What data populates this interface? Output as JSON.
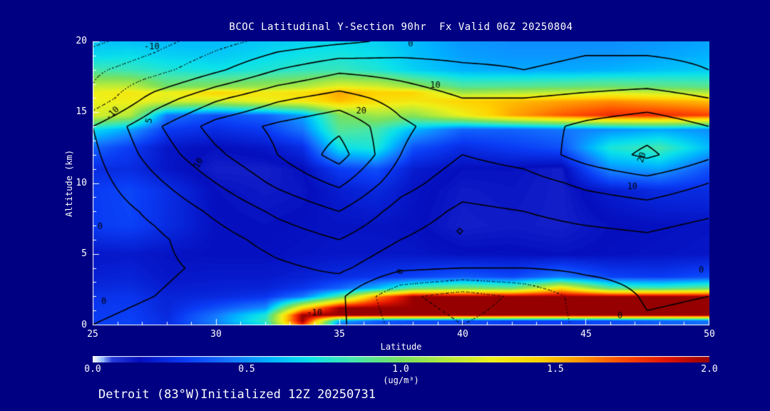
{
  "title": "BCOC Latitudinal Y-Section 90hr  Fx Valid 06Z 20250804",
  "footer": "Detroit (83°W)Initialized 12Z 20250731",
  "colors": {
    "background": "#000082",
    "text": "#ffffff",
    "axis": "#ffffff",
    "contour_line": "#000000"
  },
  "axes": {
    "x": {
      "label": "Latitude",
      "min": 25,
      "max": 50,
      "minor_step": 1,
      "ticks": [
        "25",
        "30",
        "35",
        "40",
        "45",
        "50"
      ]
    },
    "y": {
      "label": "Altitude (km)",
      "min": 0,
      "max": 20,
      "minor_step": 1,
      "ticks": [
        "0",
        "5",
        "10",
        "15",
        "20"
      ]
    }
  },
  "colorbar": {
    "min": 0,
    "max": 2,
    "ticks": [
      "0.0",
      "0.5",
      "1.0",
      "1.5",
      "2.0"
    ],
    "unit": "(ug/m³)"
  },
  "chart_data": {
    "type": "heatmap",
    "title": "BCOC Latitudinal Y-Section 90hr  Fx Valid 06Z 20250804",
    "xlabel": "Latitude",
    "ylabel": "Altitude (km)",
    "xlim": [
      25,
      50
    ],
    "ylim": [
      0,
      20
    ],
    "fill_field": {
      "name": "BCOC concentration",
      "units": "ug/m3",
      "range": [
        0,
        2
      ],
      "lats": [
        25,
        26.5,
        28,
        30,
        32,
        33.5,
        35,
        36.5,
        38,
        40,
        42,
        44,
        46,
        48,
        50
      ],
      "alts": [
        0,
        0.3,
        0.7,
        1.2,
        2,
        2.6,
        3.4,
        5,
        7,
        9.5,
        11,
        12.5,
        13.8,
        14.8,
        15.8,
        16.4,
        16.8,
        18,
        19,
        20
      ],
      "values": [
        [
          0.3,
          0.32,
          0.25,
          0.45,
          0.7,
          1.8,
          0.4,
          0.35,
          0.33,
          0.33,
          0.3,
          0.3,
          0.33,
          0.38,
          0.42
        ],
        [
          0.3,
          0.32,
          0.25,
          0.48,
          0.8,
          2.0,
          0.6,
          0.4,
          0.35,
          0.35,
          0.32,
          0.32,
          0.35,
          0.4,
          0.45
        ],
        [
          0.3,
          0.31,
          0.24,
          0.45,
          0.75,
          2.0,
          2.0,
          2.0,
          2.0,
          2.0,
          2.0,
          2.0,
          2.0,
          2.0,
          2.0
        ],
        [
          0.29,
          0.3,
          0.23,
          0.35,
          0.5,
          1.4,
          2.0,
          2.0,
          2.0,
          2.0,
          2.0,
          2.0,
          2.0,
          2.0,
          2.0
        ],
        [
          0.27,
          0.28,
          0.22,
          0.24,
          0.28,
          0.45,
          0.9,
          1.6,
          2.0,
          2.0,
          2.0,
          2.0,
          2.0,
          2.0,
          2.0
        ],
        [
          0.24,
          0.25,
          0.2,
          0.21,
          0.22,
          0.28,
          0.4,
          0.6,
          0.9,
          1.0,
          0.95,
          1.4,
          0.9,
          0.85,
          0.95
        ],
        [
          0.21,
          0.22,
          0.18,
          0.19,
          0.19,
          0.21,
          0.25,
          0.28,
          0.32,
          0.38,
          0.33,
          0.45,
          0.32,
          0.3,
          0.35
        ],
        [
          0.18,
          0.19,
          0.17,
          0.16,
          0.16,
          0.17,
          0.18,
          0.18,
          0.18,
          0.16,
          0.16,
          0.15,
          0.16,
          0.17,
          0.18
        ],
        [
          0.3,
          0.32,
          0.25,
          0.16,
          0.15,
          0.16,
          0.17,
          0.17,
          0.16,
          0.12,
          0.13,
          0.12,
          0.15,
          0.16,
          0.17
        ],
        [
          0.3,
          0.33,
          0.26,
          0.15,
          0.13,
          0.14,
          0.2,
          0.24,
          0.17,
          0.13,
          0.14,
          0.12,
          0.2,
          0.25,
          0.25
        ],
        [
          0.25,
          0.25,
          0.18,
          0.12,
          0.12,
          0.15,
          0.3,
          0.35,
          0.2,
          0.15,
          0.15,
          0.12,
          0.5,
          0.55,
          0.35
        ],
        [
          0.4,
          0.3,
          0.18,
          0.15,
          0.18,
          0.25,
          0.7,
          0.75,
          0.35,
          0.25,
          0.3,
          0.35,
          0.75,
          0.85,
          0.6
        ],
        [
          0.7,
          0.55,
          0.3,
          0.25,
          0.3,
          0.45,
          0.9,
          0.85,
          0.6,
          0.4,
          0.4,
          0.45,
          0.5,
          0.55,
          0.5
        ],
        [
          1.25,
          1.15,
          0.45,
          0.35,
          0.4,
          0.55,
          1.0,
          1.1,
          1.05,
          1.3,
          1.55,
          1.7,
          1.8,
          1.8,
          1.75
        ],
        [
          1.3,
          1.32,
          1.25,
          1.2,
          1.3,
          1.35,
          1.5,
          1.4,
          1.35,
          1.45,
          1.5,
          1.55,
          1.6,
          1.55,
          1.5
        ],
        [
          1.3,
          1.35,
          1.3,
          1.45,
          1.35,
          1.4,
          1.55,
          1.45,
          1.45,
          1.1,
          1.15,
          1.2,
          1.25,
          1.2,
          1.15
        ],
        [
          1.2,
          1.2,
          1.0,
          1.05,
          1.1,
          1.15,
          1.3,
          1.25,
          1.1,
          0.9,
          0.92,
          0.95,
          0.98,
          0.95,
          0.92
        ],
        [
          0.85,
          0.82,
          0.76,
          0.72,
          0.76,
          0.8,
          0.82,
          0.76,
          0.66,
          0.58,
          0.56,
          0.56,
          0.58,
          0.62,
          0.64
        ],
        [
          0.68,
          0.7,
          0.66,
          0.64,
          0.68,
          0.72,
          0.74,
          0.7,
          0.62,
          0.54,
          0.52,
          0.52,
          0.52,
          0.55,
          0.58
        ],
        [
          0.62,
          0.62,
          0.6,
          0.6,
          0.64,
          0.66,
          0.68,
          0.66,
          0.6,
          0.52,
          0.5,
          0.5,
          0.5,
          0.52,
          0.55
        ]
      ]
    },
    "line_field": {
      "name": "overlay contour field",
      "levels": [
        -15,
        -10,
        -5,
        0,
        5,
        10,
        15,
        20,
        25
      ],
      "negative_style": "dotted",
      "lats": [
        25,
        27.5,
        30,
        32.5,
        35,
        37.5,
        40,
        42.5,
        45,
        47.5,
        50
      ],
      "alts": [
        0,
        2,
        4,
        6,
        8,
        10,
        12,
        14,
        16,
        18,
        20
      ],
      "values": [
        [
          0,
          1,
          3,
          4,
          1,
          -7,
          -10,
          -8,
          -4,
          -0.5,
          -1
        ],
        [
          -1,
          0,
          2,
          3,
          1,
          -9,
          -12,
          -9,
          -3,
          0.5,
          0
        ],
        [
          -2,
          -1,
          1,
          4,
          6,
          1,
          0,
          0,
          1,
          1.5,
          0.5
        ],
        [
          -3,
          -1,
          3,
          7,
          10,
          5,
          2,
          2,
          3,
          4,
          2
        ],
        [
          -3,
          1,
          6,
          11,
          15,
          8,
          4,
          5,
          7,
          8,
          6
        ],
        [
          -2,
          4,
          10,
          16,
          21,
          12,
          7,
          8,
          11,
          13,
          10
        ],
        [
          -1,
          7,
          14,
          20,
          27,
          15,
          10,
          12,
          17,
          21,
          16
        ],
        [
          0,
          9,
          17,
          21,
          24,
          16,
          12,
          13,
          16,
          18,
          15
        ],
        [
          -9,
          2,
          9,
          14,
          17,
          13,
          10,
          10,
          11,
          12,
          10
        ],
        [
          -11,
          -7,
          -1,
          5,
          9,
          8,
          6,
          5,
          6,
          6,
          5
        ],
        [
          -16,
          -12,
          -7,
          -3,
          -1,
          1,
          2,
          3,
          4,
          4,
          4
        ]
      ]
    },
    "contour_labels": [
      {
        "lat": 27.4,
        "alt": 19.6,
        "text": "-10",
        "rot": 0
      },
      {
        "lat": 25.8,
        "alt": 14.9,
        "text": "-10",
        "rot": -45
      },
      {
        "lat": 37.9,
        "alt": 19.8,
        "text": "0",
        "rot": 0
      },
      {
        "lat": 38.9,
        "alt": 16.9,
        "text": "10",
        "rot": 0
      },
      {
        "lat": 35.9,
        "alt": 15.05,
        "text": "20",
        "rot": 0
      },
      {
        "lat": 29.3,
        "alt": 11.4,
        "text": "10",
        "rot": -60
      },
      {
        "lat": 27.3,
        "alt": 14.4,
        "text": "5",
        "rot": -80
      },
      {
        "lat": 25.3,
        "alt": 6.9,
        "text": "0",
        "rot": 0
      },
      {
        "lat": 25.45,
        "alt": 1.6,
        "text": "0",
        "rot": 0
      },
      {
        "lat": 46.9,
        "alt": 9.75,
        "text": "10",
        "rot": 0
      },
      {
        "lat": 47.3,
        "alt": 11.8,
        "text": "20",
        "rot": -70
      },
      {
        "lat": 49.7,
        "alt": 3.85,
        "text": "0",
        "rot": 0
      },
      {
        "lat": 37.5,
        "alt": 3.75,
        "text": "0",
        "rot": -80
      },
      {
        "lat": 34.0,
        "alt": 0.8,
        "text": "-10",
        "rot": 0
      },
      {
        "lat": 46.4,
        "alt": 0.6,
        "text": "0",
        "rot": 0
      }
    ],
    "marker": {
      "lat": 39.9,
      "alt": 6.6,
      "shape": "diamond"
    },
    "colormap": {
      "stops": [
        [
          0.0,
          "#FFFFFF"
        ],
        [
          0.03,
          "#96BEFF"
        ],
        [
          0.06,
          "#283CDC"
        ],
        [
          0.15,
          "#050FBE"
        ],
        [
          0.3,
          "#0A3CF5"
        ],
        [
          0.45,
          "#1478FF"
        ],
        [
          0.58,
          "#00B4FF"
        ],
        [
          0.7,
          "#0AE1EB"
        ],
        [
          0.85,
          "#46E6AA"
        ],
        [
          1.0,
          "#78E15F"
        ],
        [
          1.15,
          "#B4EB3C"
        ],
        [
          1.3,
          "#EEF019"
        ],
        [
          1.45,
          "#FFD200"
        ],
        [
          1.58,
          "#FF9600"
        ],
        [
          1.72,
          "#FF4B00"
        ],
        [
          1.86,
          "#E11400"
        ],
        [
          2.0,
          "#960000"
        ]
      ]
    }
  }
}
